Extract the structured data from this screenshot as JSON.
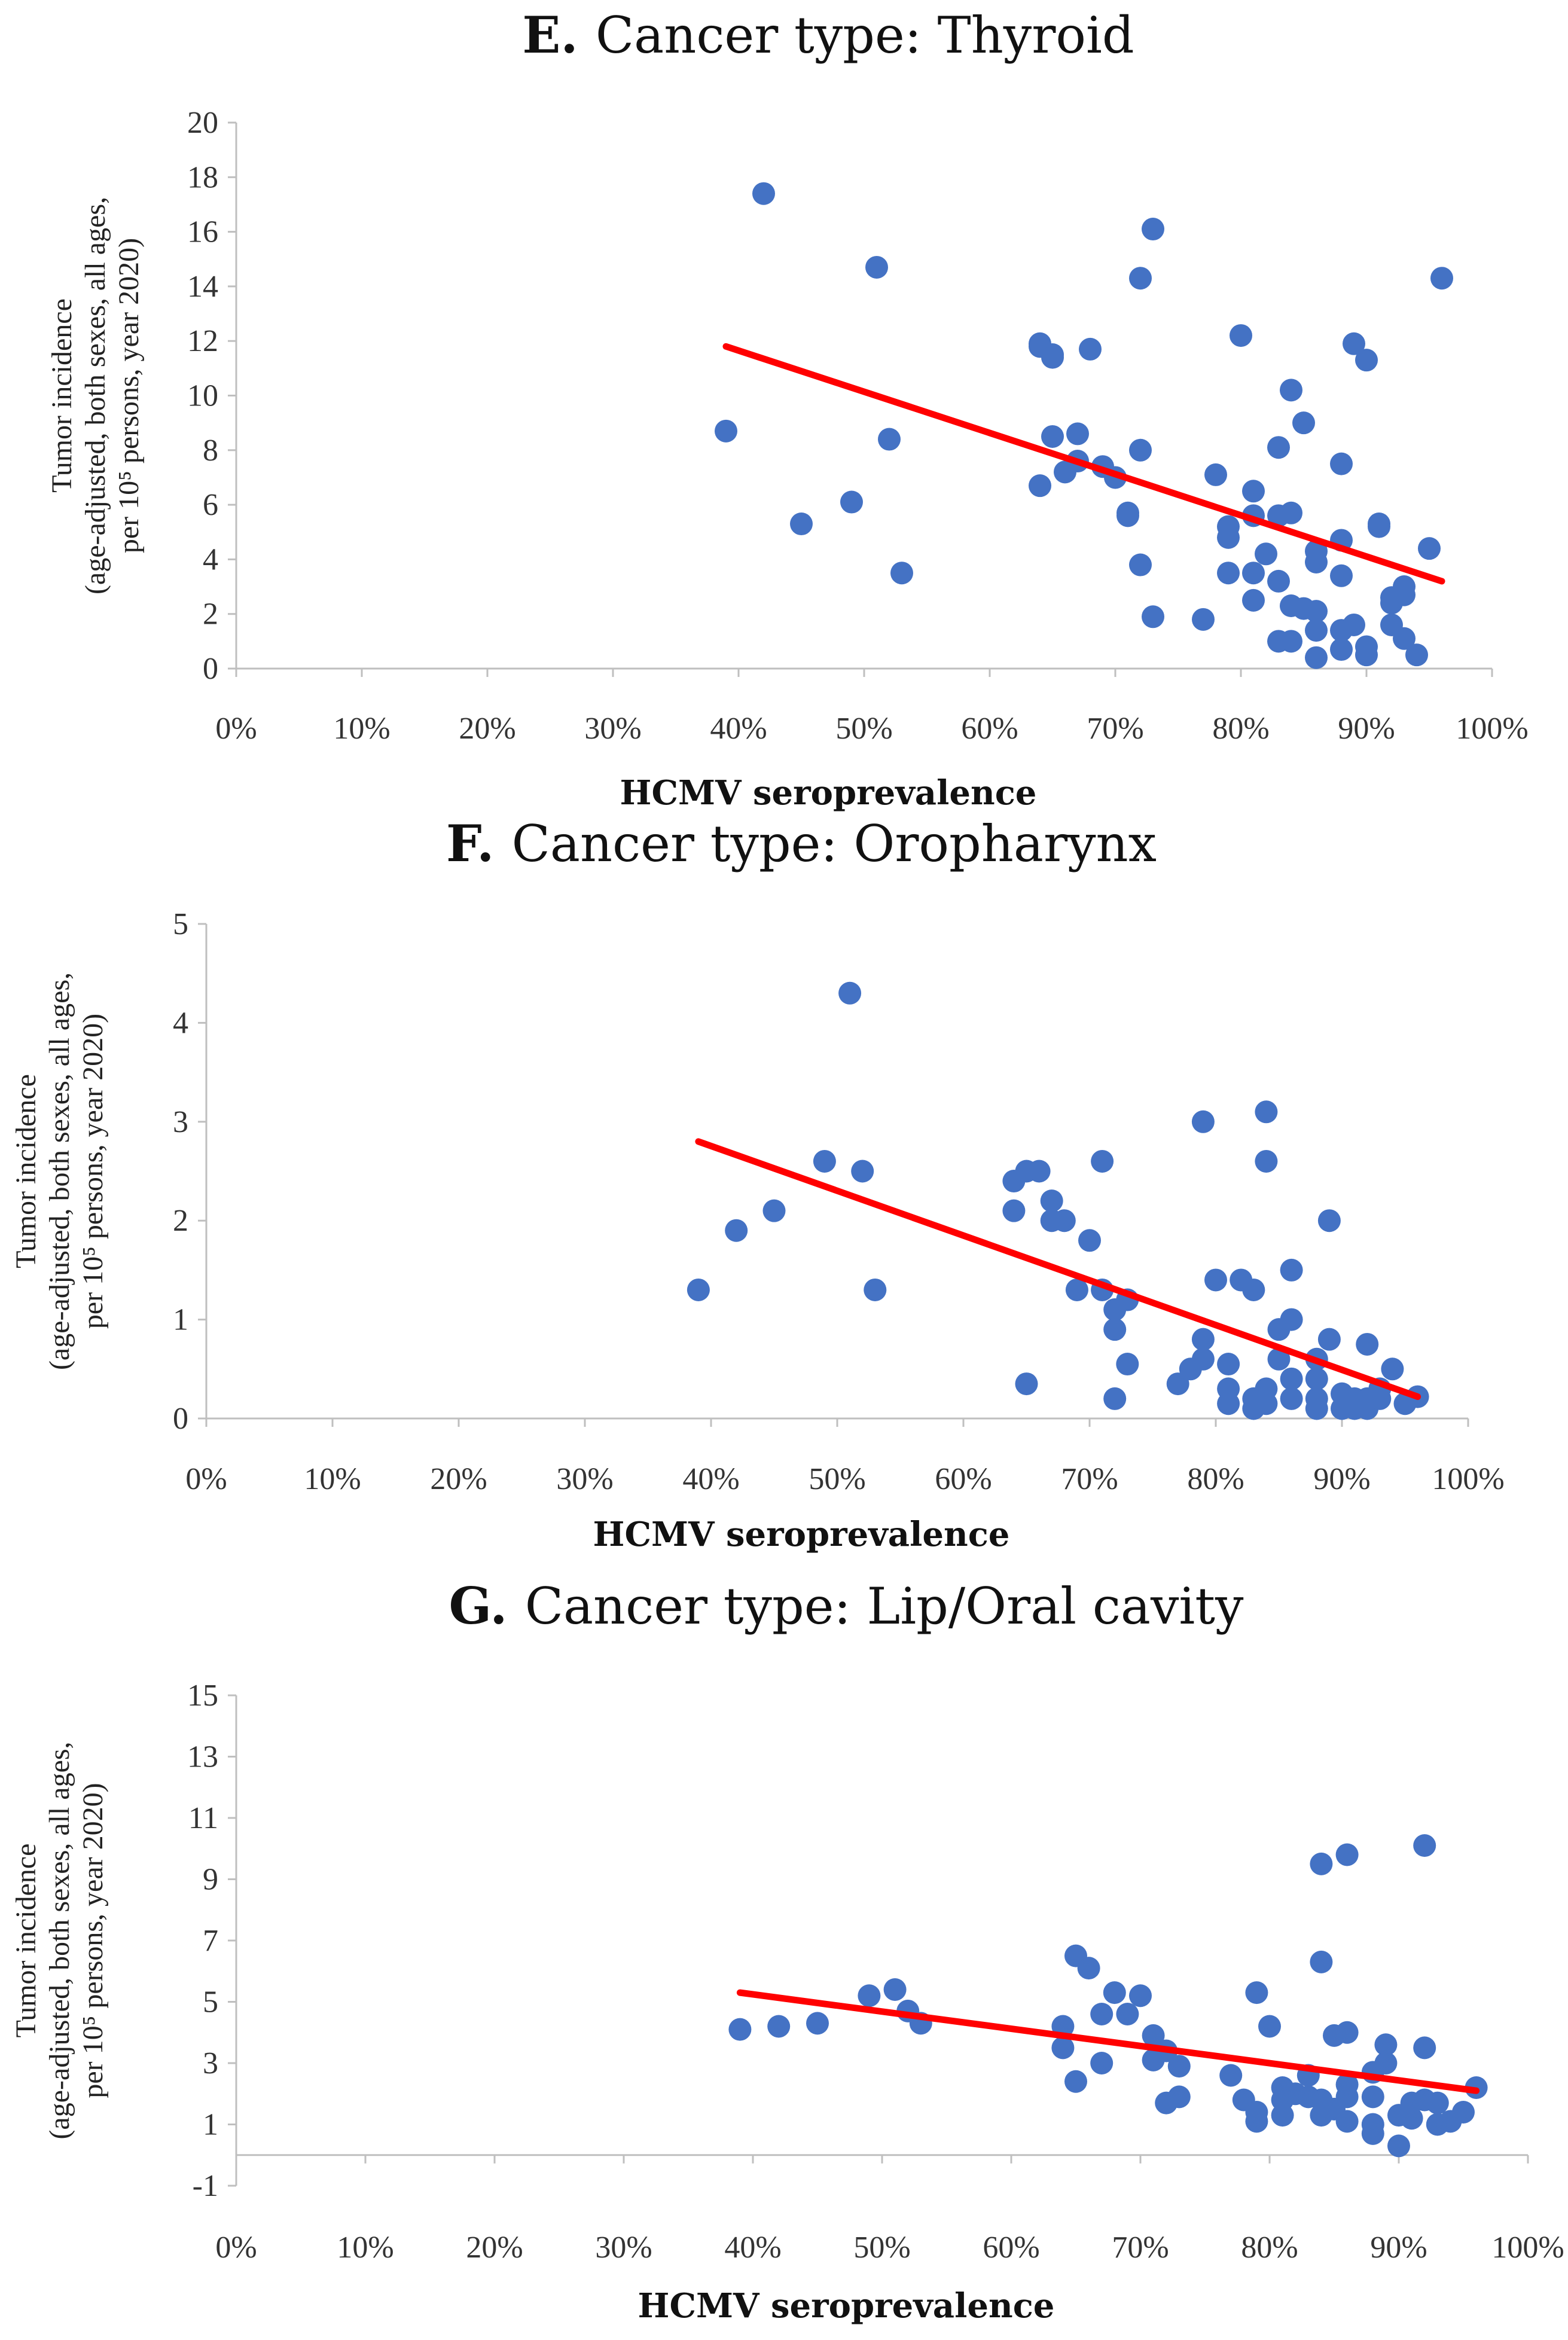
{
  "chart_data": [
    {
      "type": "scatter",
      "panel_letter": "E.",
      "title": "Cancer type: Thyroid",
      "xlabel": "HCMV seroprevalence",
      "ylabel_lines": [
        "Tumor incidence",
        "(age-adjusted, both sexes, all ages,",
        "per 10⁵ persons, year 2020)"
      ],
      "xlim": [
        0,
        100
      ],
      "ylim": [
        0,
        20
      ],
      "x_ticks": [
        "0%",
        "10%",
        "20%",
        "30%",
        "40%",
        "50%",
        "60%",
        "70%",
        "80%",
        "90%",
        "100%"
      ],
      "y_ticks": [
        "0",
        "2",
        "4",
        "6",
        "8",
        "10",
        "12",
        "14",
        "16",
        "18",
        "20"
      ],
      "y_tick_values": [
        0,
        2,
        4,
        6,
        8,
        10,
        12,
        14,
        16,
        18,
        20
      ],
      "point_color": "#4472C4",
      "trend_color": "#FF0000",
      "trendline": {
        "x": [
          39,
          96
        ],
        "y": [
          11.8,
          3.2
        ]
      },
      "points": [
        [
          39,
          8.7
        ],
        [
          42,
          17.4
        ],
        [
          45,
          5.3
        ],
        [
          49,
          6.1
        ],
        [
          51,
          14.7
        ],
        [
          52,
          8.4
        ],
        [
          53,
          3.5
        ],
        [
          64,
          11.9
        ],
        [
          64,
          11.8
        ],
        [
          65,
          11.5
        ],
        [
          65,
          11.4
        ],
        [
          68,
          11.7
        ],
        [
          64,
          6.7
        ],
        [
          65,
          8.5
        ],
        [
          66,
          7.2
        ],
        [
          67,
          8.6
        ],
        [
          67,
          7.6
        ],
        [
          69,
          7.4
        ],
        [
          70,
          7.0
        ],
        [
          71,
          5.7
        ],
        [
          71,
          5.6
        ],
        [
          72,
          14.3
        ],
        [
          73,
          16.1
        ],
        [
          72,
          8.0
        ],
        [
          72,
          3.8
        ],
        [
          73,
          1.9
        ],
        [
          77,
          1.8
        ],
        [
          78,
          7.1
        ],
        [
          79,
          5.2
        ],
        [
          79,
          4.8
        ],
        [
          79,
          3.5
        ],
        [
          80,
          12.2
        ],
        [
          81,
          6.5
        ],
        [
          81,
          5.6
        ],
        [
          82,
          4.2
        ],
        [
          81,
          3.5
        ],
        [
          81,
          2.5
        ],
        [
          83,
          8.1
        ],
        [
          83,
          5.6
        ],
        [
          83,
          3.2
        ],
        [
          84,
          5.7
        ],
        [
          84,
          2.3
        ],
        [
          84,
          10.2
        ],
        [
          85,
          9.0
        ],
        [
          85,
          2.2
        ],
        [
          86,
          4.3
        ],
        [
          86,
          3.9
        ],
        [
          86,
          2.1
        ],
        [
          86,
          1.4
        ],
        [
          86,
          0.4
        ],
        [
          83,
          1.0
        ],
        [
          84,
          1.0
        ],
        [
          88,
          7.5
        ],
        [
          88,
          4.7
        ],
        [
          88,
          3.4
        ],
        [
          88,
          1.4
        ],
        [
          88,
          0.7
        ],
        [
          89,
          11.9
        ],
        [
          89,
          1.6
        ],
        [
          90,
          11.3
        ],
        [
          90,
          0.8
        ],
        [
          90,
          0.5
        ],
        [
          91,
          5.3
        ],
        [
          91,
          5.2
        ],
        [
          92,
          2.4
        ],
        [
          92,
          1.6
        ],
        [
          92,
          2.6
        ],
        [
          93,
          3.0
        ],
        [
          93,
          2.7
        ],
        [
          93,
          1.1
        ],
        [
          94,
          0.5
        ],
        [
          95,
          4.4
        ],
        [
          96,
          14.3
        ]
      ]
    },
    {
      "type": "scatter",
      "panel_letter": "F.",
      "title": "Cancer type: Oropharynx",
      "xlabel": "HCMV seroprevalence",
      "ylabel_lines": [
        "Tumor incidence",
        "(age-adjusted, both sexes, all ages,",
        "per 10⁵ persons, year 2020)"
      ],
      "xlim": [
        0,
        100
      ],
      "ylim": [
        0,
        5
      ],
      "x_ticks": [
        "0%",
        "10%",
        "20%",
        "30%",
        "40%",
        "50%",
        "60%",
        "70%",
        "80%",
        "90%",
        "100%"
      ],
      "y_ticks": [
        "0",
        "1",
        "2",
        "3",
        "4",
        "5"
      ],
      "y_tick_values": [
        0,
        1,
        2,
        3,
        4,
        5
      ],
      "point_color": "#4472C4",
      "trend_color": "#FF0000",
      "trendline": {
        "x": [
          39,
          96
        ],
        "y": [
          2.8,
          0.22
        ]
      },
      "points": [
        [
          39,
          1.3
        ],
        [
          42,
          1.9
        ],
        [
          45,
          2.1
        ],
        [
          49,
          2.6
        ],
        [
          51,
          4.3
        ],
        [
          52,
          2.5
        ],
        [
          53,
          1.3
        ],
        [
          64,
          2.4
        ],
        [
          64,
          2.1
        ],
        [
          65,
          2.5
        ],
        [
          65,
          0.35
        ],
        [
          66,
          2.5
        ],
        [
          67,
          2.2
        ],
        [
          67,
          2.0
        ],
        [
          68,
          2.0
        ],
        [
          69,
          1.3
        ],
        [
          70,
          1.8
        ],
        [
          71,
          2.6
        ],
        [
          71,
          1.3
        ],
        [
          72,
          1.1
        ],
        [
          72,
          0.9
        ],
        [
          72,
          0.2
        ],
        [
          73,
          1.2
        ],
        [
          73,
          0.55
        ],
        [
          77,
          0.35
        ],
        [
          78,
          0.5
        ],
        [
          79,
          3.0
        ],
        [
          79,
          0.8
        ],
        [
          79,
          0.6
        ],
        [
          80,
          1.4
        ],
        [
          81,
          0.55
        ],
        [
          81,
          0.3
        ],
        [
          81,
          0.15
        ],
        [
          82,
          1.4
        ],
        [
          83,
          1.3
        ],
        [
          83,
          0.2
        ],
        [
          83,
          0.1
        ],
        [
          84,
          3.1
        ],
        [
          84,
          2.6
        ],
        [
          84,
          0.3
        ],
        [
          84,
          0.15
        ],
        [
          85,
          0.9
        ],
        [
          85,
          0.6
        ],
        [
          86,
          1.5
        ],
        [
          86,
          1.0
        ],
        [
          86,
          0.4
        ],
        [
          86,
          0.2
        ],
        [
          88,
          0.6
        ],
        [
          88,
          0.4
        ],
        [
          88,
          0.2
        ],
        [
          88,
          0.1
        ],
        [
          89,
          2.0
        ],
        [
          89,
          0.8
        ],
        [
          90,
          0.25
        ],
        [
          90,
          0.1
        ],
        [
          91,
          0.2
        ],
        [
          91,
          0.1
        ],
        [
          92,
          0.75
        ],
        [
          92,
          0.2
        ],
        [
          92,
          0.1
        ],
        [
          93,
          0.3
        ],
        [
          93,
          0.2
        ],
        [
          94,
          0.5
        ],
        [
          95,
          0.15
        ],
        [
          96,
          0.22
        ]
      ]
    },
    {
      "type": "scatter",
      "panel_letter": "G.",
      "title": "Cancer type: Lip/Oral cavity",
      "xlabel": "HCMV seroprevalence",
      "ylabel_lines": [
        "Tumor incidence",
        "(age-adjusted, both sexes, all ages,",
        "per 10⁵ persons, year 2020)"
      ],
      "xlim": [
        0,
        100
      ],
      "ylim": [
        -1,
        15
      ],
      "x_ticks": [
        "0%",
        "10%",
        "20%",
        "30%",
        "40%",
        "50%",
        "60%",
        "70%",
        "80%",
        "90%",
        "100%"
      ],
      "y_ticks": [
        "-1",
        "1",
        "3",
        "5",
        "7",
        "9",
        "11",
        "13",
        "15"
      ],
      "y_tick_values": [
        -1,
        1,
        3,
        5,
        7,
        9,
        11,
        13,
        15
      ],
      "point_color": "#4472C4",
      "trend_color": "#FF0000",
      "trendline": {
        "x": [
          39,
          96
        ],
        "y": [
          5.3,
          2.1
        ]
      },
      "points": [
        [
          39,
          4.1
        ],
        [
          42,
          4.2
        ],
        [
          45,
          4.3
        ],
        [
          49,
          5.2
        ],
        [
          51,
          5.4
        ],
        [
          52,
          4.7
        ],
        [
          53,
          4.3
        ],
        [
          64,
          4.2
        ],
        [
          64,
          3.5
        ],
        [
          65,
          6.5
        ],
        [
          65,
          2.4
        ],
        [
          66,
          6.1
        ],
        [
          67,
          4.6
        ],
        [
          67,
          3.0
        ],
        [
          68,
          5.3
        ],
        [
          69,
          4.6
        ],
        [
          70,
          5.2
        ],
        [
          71,
          3.9
        ],
        [
          71,
          3.1
        ],
        [
          72,
          3.4
        ],
        [
          72,
          1.7
        ],
        [
          73,
          2.9
        ],
        [
          73,
          1.9
        ],
        [
          77,
          2.6
        ],
        [
          78,
          1.8
        ],
        [
          79,
          5.3
        ],
        [
          79,
          1.4
        ],
        [
          79,
          1.1
        ],
        [
          80,
          4.2
        ],
        [
          81,
          2.2
        ],
        [
          81,
          1.8
        ],
        [
          81,
          1.3
        ],
        [
          82,
          2.0
        ],
        [
          83,
          1.9
        ],
        [
          83,
          2.6
        ],
        [
          84,
          9.5
        ],
        [
          84,
          6.3
        ],
        [
          84,
          1.8
        ],
        [
          84,
          1.3
        ],
        [
          85,
          1.5
        ],
        [
          85,
          3.9
        ],
        [
          86,
          9.8
        ],
        [
          86,
          4.0
        ],
        [
          86,
          2.3
        ],
        [
          86,
          1.9
        ],
        [
          86,
          1.1
        ],
        [
          88,
          2.7
        ],
        [
          88,
          1.9
        ],
        [
          88,
          1.0
        ],
        [
          88,
          0.7
        ],
        [
          89,
          3.6
        ],
        [
          89,
          3.0
        ],
        [
          90,
          0.3
        ],
        [
          90,
          1.3
        ],
        [
          91,
          1.2
        ],
        [
          91,
          1.7
        ],
        [
          92,
          10.1
        ],
        [
          92,
          3.5
        ],
        [
          92,
          1.8
        ],
        [
          93,
          1.7
        ],
        [
          93,
          1.0
        ],
        [
          94,
          1.1
        ],
        [
          95,
          1.4
        ],
        [
          96,
          2.2
        ]
      ]
    }
  ]
}
